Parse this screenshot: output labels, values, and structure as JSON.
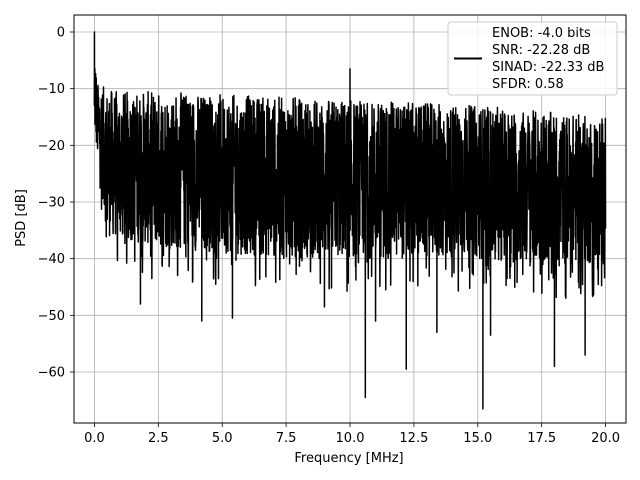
{
  "chart_data": {
    "type": "line",
    "title": "",
    "xlabel": "Frequency [MHz]",
    "ylabel": "PSD [dB]",
    "xlim": [
      -0.8,
      20.8
    ],
    "ylim": [
      -69,
      3
    ],
    "x_ticks": [
      0.0,
      2.5,
      5.0,
      7.5,
      10.0,
      12.5,
      15.0,
      17.5,
      20.0
    ],
    "x_tick_labels": [
      "0.0",
      "2.5",
      "5.0",
      "7.5",
      "10.0",
      "12.5",
      "15.0",
      "17.5",
      "20.0"
    ],
    "y_ticks": [
      0,
      -10,
      -20,
      -30,
      -40,
      -50,
      -60
    ],
    "y_tick_labels": [
      "0",
      "−10",
      "−20",
      "−30",
      "−40",
      "−50",
      "−60"
    ],
    "grid": true,
    "legend_position": "top-right",
    "series": [
      {
        "color": "#000000",
        "description": "dense noisy PSD trace across 0–20 MHz",
        "upper_envelope_x": [
          0.0,
          0.05,
          0.1,
          0.5,
          1.0,
          2.5,
          5.0,
          7.5,
          10.0,
          12.5,
          15.0,
          17.5,
          20.0
        ],
        "upper_envelope_y": [
          0,
          -5,
          -9,
          -10,
          -10.5,
          -10.5,
          -11,
          -11.5,
          -12,
          -12.5,
          -13,
          -14,
          -15
        ],
        "lower_envelope_x": [
          0.0,
          0.5,
          2.5,
          5.0,
          7.5,
          10.0,
          12.5,
          15.0,
          17.5,
          20.0
        ],
        "lower_envelope_y": [
          -18,
          -36,
          -38,
          -39,
          -40,
          -40,
          -40,
          -40,
          -41,
          -41
        ],
        "spikes": [
          {
            "x": 0.0,
            "y": 0
          },
          {
            "x": 10.0,
            "y": -6.5
          }
        ],
        "dips": [
          {
            "x": 1.8,
            "y": -48
          },
          {
            "x": 4.2,
            "y": -51
          },
          {
            "x": 5.4,
            "y": -50.5
          },
          {
            "x": 9.0,
            "y": -48.5
          },
          {
            "x": 10.6,
            "y": -64.5
          },
          {
            "x": 11.0,
            "y": -51
          },
          {
            "x": 12.2,
            "y": -59.5
          },
          {
            "x": 13.4,
            "y": -53
          },
          {
            "x": 15.2,
            "y": -66.5
          },
          {
            "x": 15.5,
            "y": -53.5
          },
          {
            "x": 18.0,
            "y": -59
          },
          {
            "x": 19.2,
            "y": -57
          }
        ]
      }
    ],
    "legend": {
      "line_color": "#000000",
      "lines": [
        "ENOB: -4.0 bits",
        "SNR: -22.28 dB",
        "SINAD: -22.33 dB",
        "SFDR: 0.58"
      ]
    }
  },
  "colors": {
    "background": "#ffffff",
    "grid": "#b0b0b0",
    "trace": "#000000",
    "axes": "#000000"
  }
}
